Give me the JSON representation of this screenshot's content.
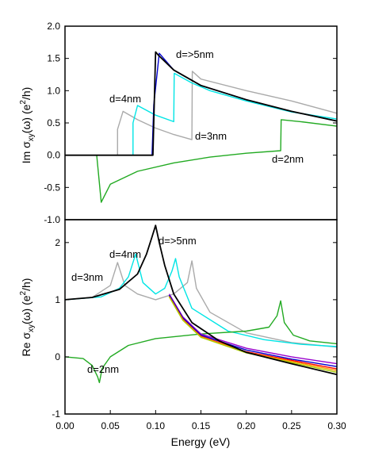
{
  "chart_data": [
    {
      "type": "line",
      "panel": "top",
      "ylabel": "Im σ_xy(ω) (e²/h)",
      "ylabel_parts": {
        "pre": "Im σ",
        "sub": "xy",
        "mid": "(ω) (e",
        "sup": "2",
        "post": "/h)"
      },
      "xlim": [
        0.0,
        0.3
      ],
      "ylim": [
        -1.0,
        2.0
      ],
      "yticks": [
        "-1.0",
        "-0.5",
        "0.0",
        "0.5",
        "1.0",
        "1.5",
        "2.0"
      ],
      "ytick_values": [
        -1.0,
        -0.5,
        0.0,
        0.5,
        1.0,
        1.5,
        2.0
      ],
      "grid": false,
      "annotations": [
        "d=>5nm",
        "d=4nm",
        "d=3nm",
        "d=2nm"
      ],
      "series": [
        {
          "color": "#aaaaaa",
          "x": [
            0.0,
            0.058,
            0.058,
            0.064,
            0.08,
            0.1,
            0.12,
            0.14,
            0.1405,
            0.15,
            0.2,
            0.25,
            0.3
          ],
          "y": [
            0.0,
            0.0,
            0.4,
            0.68,
            0.55,
            0.42,
            0.32,
            0.24,
            1.3,
            1.18,
            1.0,
            0.84,
            0.65
          ]
        },
        {
          "color": "#00e5e5",
          "x": [
            0.0,
            0.075,
            0.075,
            0.08,
            0.1,
            0.12,
            0.1205,
            0.14,
            0.16,
            0.2,
            0.25,
            0.3
          ],
          "y": [
            0.0,
            0.0,
            0.5,
            0.77,
            0.62,
            0.52,
            1.27,
            1.12,
            1.0,
            0.84,
            0.67,
            0.56
          ]
        },
        {
          "color": "#22aa22",
          "x": [
            0.0,
            0.035,
            0.04,
            0.05,
            0.08,
            0.12,
            0.16,
            0.2,
            0.238,
            0.2385,
            0.26,
            0.3
          ],
          "y": [
            0.0,
            0.0,
            -0.73,
            -0.45,
            -0.25,
            -0.12,
            -0.03,
            0.03,
            0.07,
            0.55,
            0.52,
            0.45
          ]
        },
        {
          "color": "#0000cc",
          "x": [
            0.0,
            0.096,
            0.098,
            0.104,
            0.12,
            0.15,
            0.2,
            0.25,
            0.3
          ],
          "y": [
            0.0,
            0.0,
            0.78,
            1.58,
            1.32,
            1.08,
            0.86,
            0.68,
            0.53
          ]
        },
        {
          "color": "#000000",
          "x": [
            0.0,
            0.097,
            0.1,
            0.103,
            0.12,
            0.15,
            0.2,
            0.25,
            0.3
          ],
          "y": [
            0.0,
            0.0,
            1.6,
            1.55,
            1.32,
            1.08,
            0.86,
            0.68,
            0.53
          ]
        }
      ]
    },
    {
      "type": "line",
      "panel": "bottom",
      "xlabel": "Energy (eV)",
      "ylabel": "Re σ_xy(ω) (e²/h)",
      "ylabel_parts": {
        "pre": "Re σ",
        "sub": "xy",
        "mid": "(ω) (e",
        "sup": "2",
        "post": "/h)"
      },
      "xlim": [
        0.0,
        0.3
      ],
      "ylim": [
        -1.0,
        2.4
      ],
      "xticks": [
        "0.00",
        "0.05",
        "0.10",
        "0.15",
        "0.20",
        "0.25",
        "0.30"
      ],
      "xtick_values": [
        0.0,
        0.05,
        0.1,
        0.15,
        0.2,
        0.25,
        0.3
      ],
      "yticks": [
        "-1",
        "0",
        "1",
        "2"
      ],
      "ytick_values": [
        -1,
        0,
        1,
        2
      ],
      "grid": false,
      "annotations": [
        "d=>5nm",
        "d=4nm",
        "d=3nm",
        "d=2nm"
      ],
      "series": [
        {
          "color": "#aaaaaa",
          "x": [
            0.0,
            0.03,
            0.05,
            0.058,
            0.066,
            0.08,
            0.1,
            0.12,
            0.135,
            0.14,
            0.145,
            0.16,
            0.2,
            0.25,
            0.3
          ],
          "y": [
            1.0,
            1.04,
            1.25,
            1.65,
            1.25,
            1.1,
            1.0,
            1.1,
            1.3,
            1.68,
            1.2,
            0.78,
            0.42,
            0.25,
            0.17
          ]
        },
        {
          "color": "#00e5e5",
          "x": [
            0.0,
            0.04,
            0.06,
            0.07,
            0.078,
            0.086,
            0.1,
            0.11,
            0.118,
            0.122,
            0.126,
            0.14,
            0.18,
            0.22,
            0.26,
            0.3
          ],
          "y": [
            1.0,
            1.05,
            1.2,
            1.4,
            1.8,
            1.3,
            1.1,
            1.2,
            1.5,
            1.72,
            1.4,
            0.85,
            0.45,
            0.3,
            0.22,
            0.18
          ]
        },
        {
          "color": "#22aa22",
          "x": [
            0.0,
            0.02,
            0.03,
            0.036,
            0.038,
            0.041,
            0.05,
            0.07,
            0.1,
            0.15,
            0.2,
            0.225,
            0.234,
            0.238,
            0.242,
            0.252,
            0.27,
            0.3
          ],
          "y": [
            0.0,
            -0.03,
            -0.15,
            -0.35,
            -0.45,
            -0.2,
            0.0,
            0.2,
            0.32,
            0.4,
            0.45,
            0.52,
            0.72,
            0.98,
            0.6,
            0.38,
            0.28,
            0.23
          ]
        },
        {
          "color": "#9900cc",
          "x": [
            0.115,
            0.13,
            0.15,
            0.2,
            0.25,
            0.3
          ],
          "y": [
            1.1,
            0.7,
            0.4,
            0.15,
            0.0,
            -0.12
          ]
        },
        {
          "color": "#0000cc",
          "x": [
            0.115,
            0.13,
            0.15,
            0.2,
            0.25,
            0.3
          ],
          "y": [
            1.08,
            0.68,
            0.38,
            0.12,
            -0.04,
            -0.17
          ]
        },
        {
          "color": "#ff0000",
          "x": [
            0.115,
            0.13,
            0.15,
            0.2,
            0.25,
            0.3
          ],
          "y": [
            1.06,
            0.66,
            0.36,
            0.09,
            -0.06,
            -0.21
          ]
        },
        {
          "color": "#ff9900",
          "x": [
            0.115,
            0.13,
            0.15,
            0.2,
            0.25,
            0.3
          ],
          "y": [
            1.05,
            0.65,
            0.35,
            0.08,
            -0.08,
            -0.24
          ]
        },
        {
          "color": "#aacc00",
          "x": [
            0.115,
            0.13,
            0.15,
            0.2,
            0.25,
            0.3
          ],
          "y": [
            1.05,
            0.64,
            0.34,
            0.07,
            -0.1,
            -0.27
          ]
        },
        {
          "color": "#000000",
          "x": [
            0.0,
            0.03,
            0.06,
            0.08,
            0.09,
            0.096,
            0.1,
            0.104,
            0.11,
            0.12,
            0.14,
            0.17,
            0.2,
            0.25,
            0.3
          ],
          "y": [
            1.0,
            1.04,
            1.18,
            1.45,
            1.8,
            2.1,
            2.3,
            2.0,
            1.6,
            1.1,
            0.6,
            0.28,
            0.08,
            -0.12,
            -0.31
          ]
        }
      ]
    }
  ]
}
